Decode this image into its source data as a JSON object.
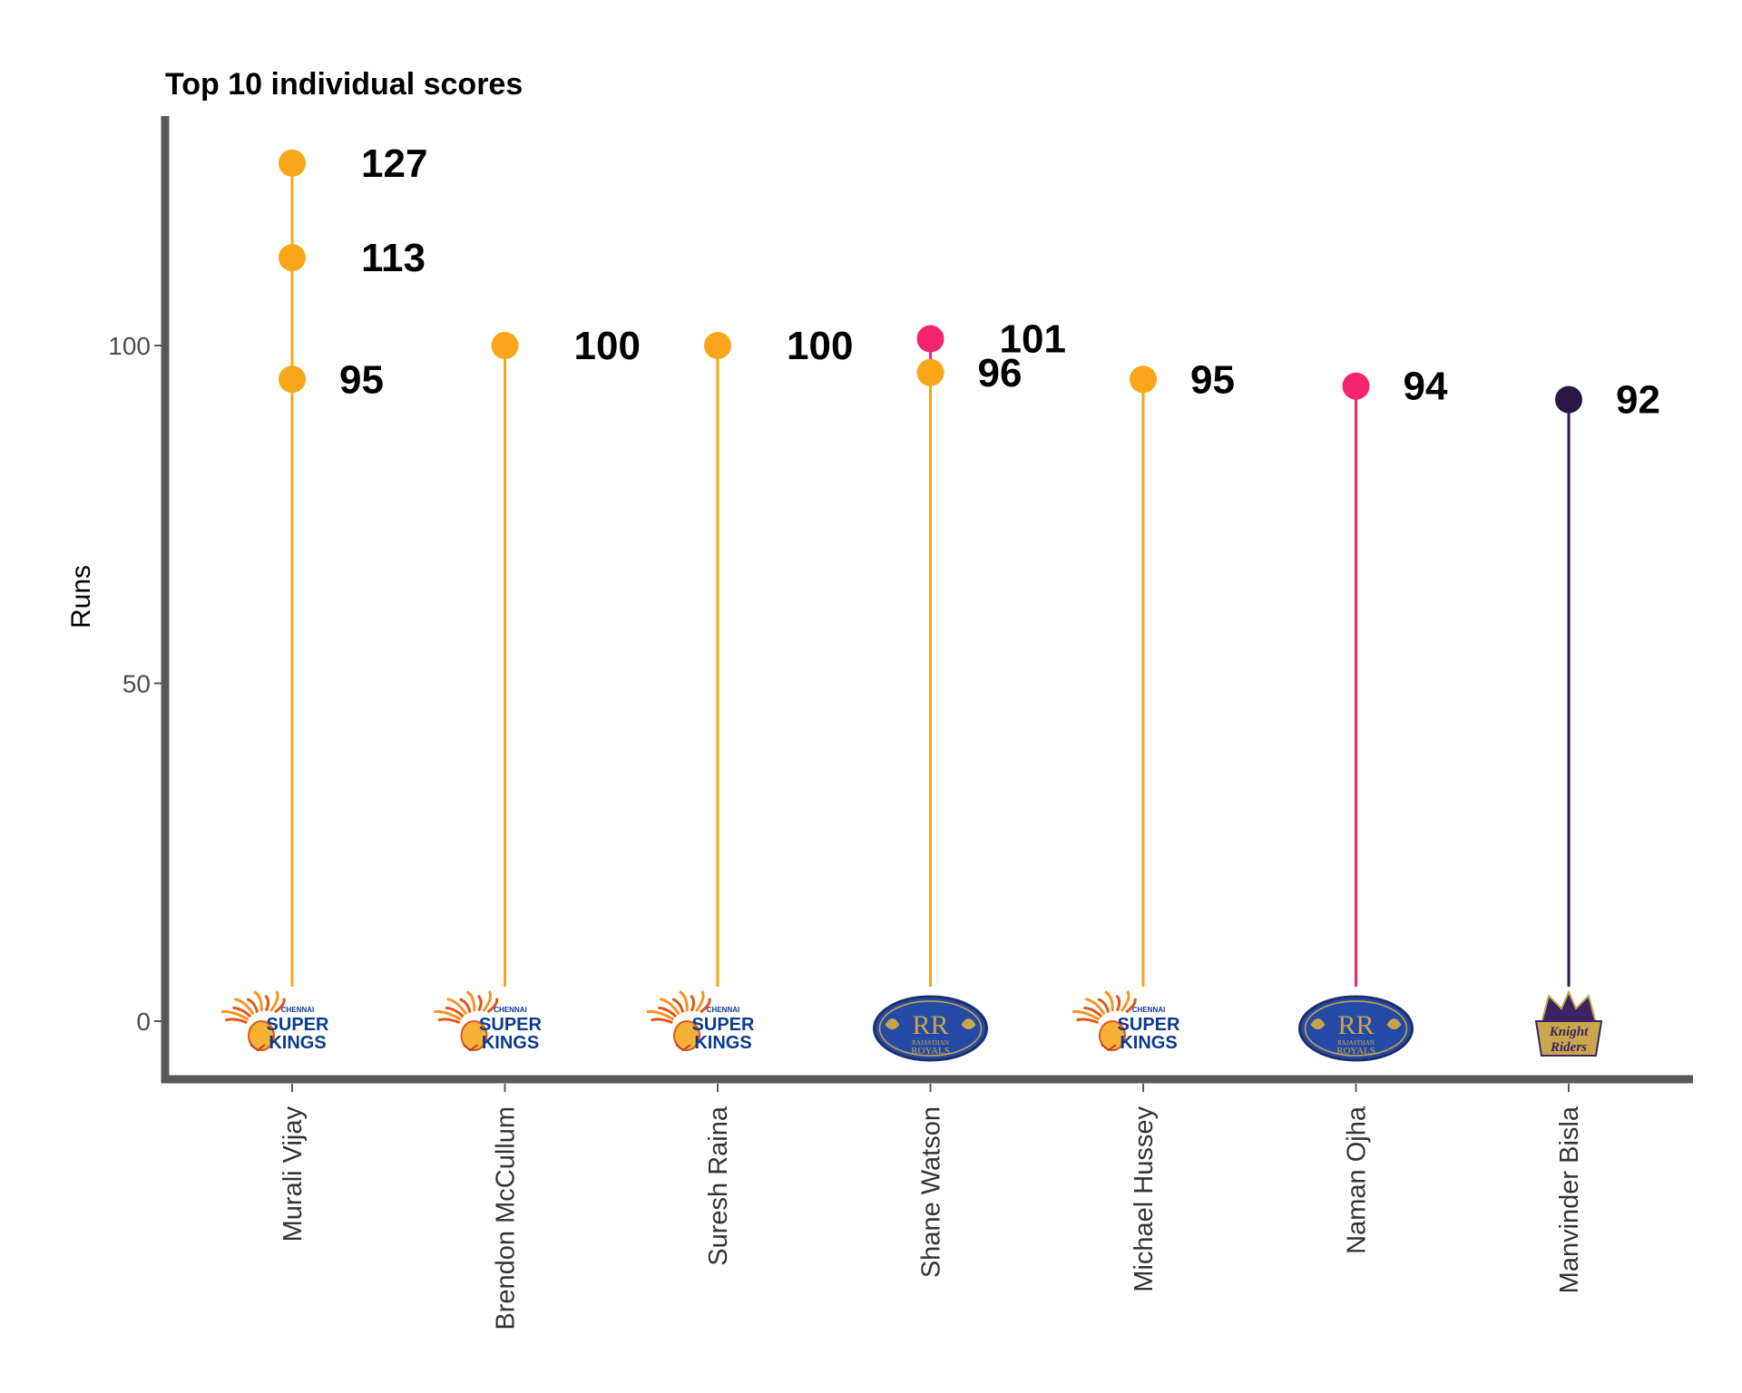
{
  "colors": {
    "csk": "#f9a61a",
    "rr": "#f5256d",
    "kkr": "#2a1748",
    "axis": "#595959",
    "csk_logo_blue": "#0b3b8f",
    "rr_logo_bg": "#254aa5",
    "rr_logo_gold": "#c9a54a"
  },
  "chart_data": {
    "type": "lollipop",
    "title": "Top 10 individual scores",
    "xlabel": "",
    "ylabel": "Runs",
    "ylim": [
      -8,
      133
    ],
    "yticks": [
      0,
      50,
      100
    ],
    "categories": [
      "Murali Vijay",
      "Brendon McCullum",
      "Suresh Raina",
      "Shane Watson",
      "Michael Hussey",
      "Naman Ojha",
      "Manvinder  Bisla"
    ],
    "team_logos": [
      "chennai-super-kings",
      "chennai-super-kings",
      "chennai-super-kings",
      "rajasthan-royals",
      "chennai-super-kings",
      "rajasthan-royals",
      "kolkata-knight-riders"
    ],
    "logo_text": {
      "csk": [
        "CHENNAI",
        "SUPER",
        "KINGS"
      ],
      "rr": [
        "RAJASTHAN",
        "ROYALS"
      ],
      "kkr": [
        "Knight",
        "Riders"
      ]
    },
    "points": [
      {
        "player": "Murali Vijay",
        "runs": 127,
        "team": "csk",
        "label": "127"
      },
      {
        "player": "Murali Vijay",
        "runs": 113,
        "team": "csk",
        "label": "113"
      },
      {
        "player": "Murali Vijay",
        "runs": 95,
        "team": "csk",
        "label": "95"
      },
      {
        "player": "Brendon McCullum",
        "runs": 100,
        "team": "csk",
        "label": "100"
      },
      {
        "player": "Suresh Raina",
        "runs": 100,
        "team": "csk",
        "label": "100"
      },
      {
        "player": "Shane Watson",
        "runs": 101,
        "team": "rr",
        "label": "101"
      },
      {
        "player": "Shane Watson",
        "runs": 96,
        "team": "csk",
        "label": "96"
      },
      {
        "player": "Michael Hussey",
        "runs": 95,
        "team": "csk",
        "label": "95"
      },
      {
        "player": "Naman Ojha",
        "runs": 94,
        "team": "rr",
        "label": "94"
      },
      {
        "player": "Manvinder  Bisla",
        "runs": 92,
        "team": "kkr",
        "label": "92"
      }
    ],
    "grid": false,
    "legend": "none"
  }
}
